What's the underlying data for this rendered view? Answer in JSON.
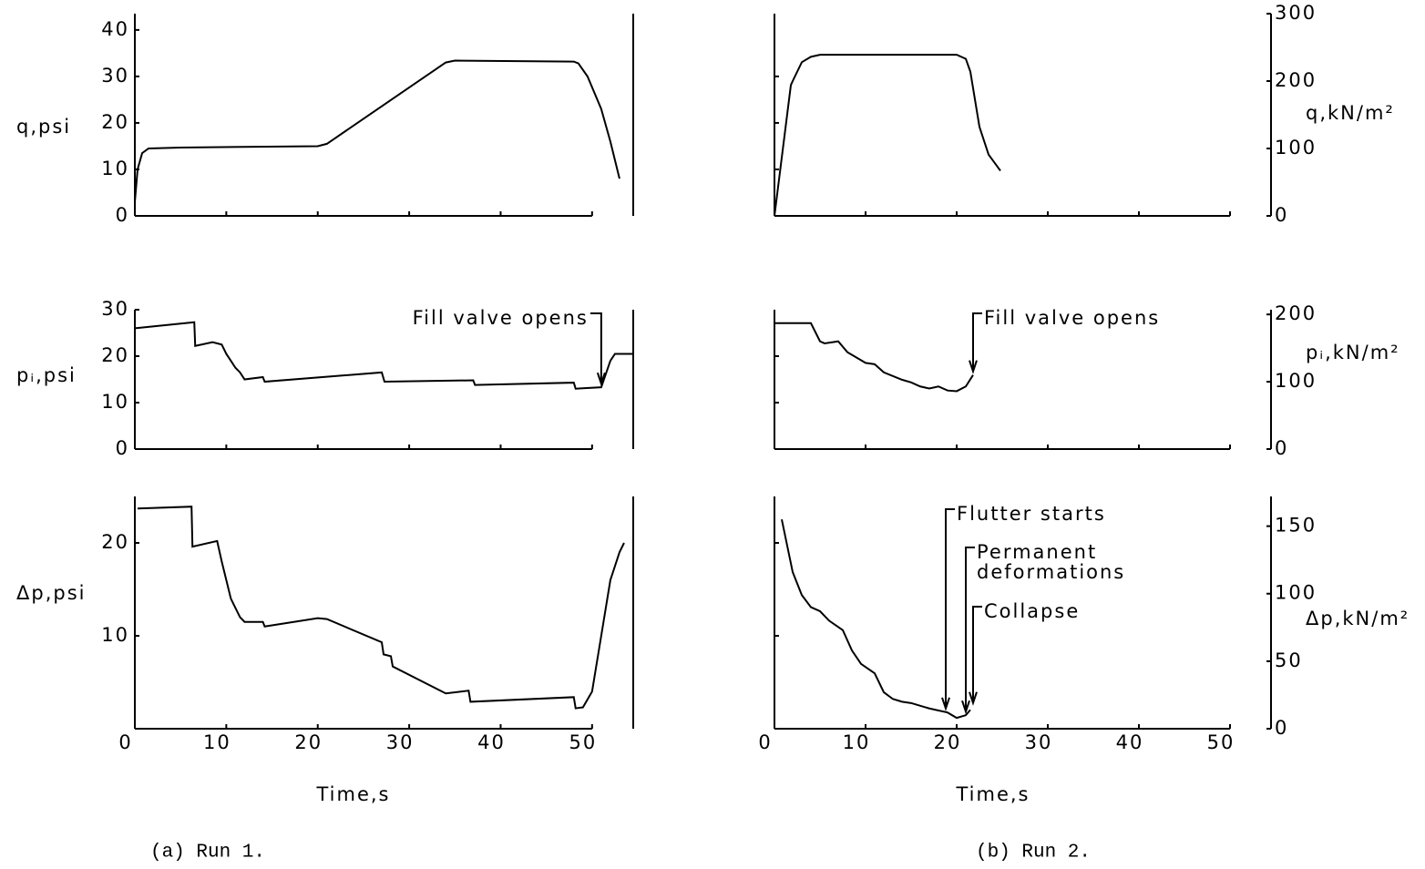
{
  "chart_data": [
    {
      "type": "line",
      "ylabel": "q,psi",
      "xlim": [
        0,
        54.5
      ],
      "xticks": [
        0,
        10,
        20,
        30,
        40,
        50
      ],
      "xtick_labels": false,
      "ylim": [
        0,
        43.5
      ],
      "yticks": [
        0,
        10,
        20,
        30,
        40
      ],
      "ytick_labels": true,
      "color": "#000000",
      "x": [
        0,
        0.3,
        0.8,
        1.5,
        5,
        20,
        21,
        34,
        35,
        48,
        48.5,
        49.5,
        51,
        52,
        53
      ],
      "values": [
        3,
        10,
        13.5,
        14.5,
        14.7,
        15,
        15.5,
        33,
        33.4,
        33.2,
        32.8,
        30,
        23,
        16,
        8
      ]
    },
    {
      "type": "line",
      "ylabel": "pᵢ,psi",
      "xlim": [
        0,
        54.5
      ],
      "xticks": [
        0,
        10,
        20,
        30,
        40,
        50
      ],
      "xtick_labels": false,
      "ylim": [
        0,
        30
      ],
      "yticks": [
        0,
        10,
        20,
        30
      ],
      "ytick_labels": true,
      "color": "#000000",
      "x": [
        0,
        6.5,
        6.6,
        8.5,
        9.5,
        10,
        10.5,
        11,
        11.5,
        12,
        14,
        14.2,
        27,
        27.3,
        37,
        37.2,
        48,
        48.2,
        51,
        52,
        52.5,
        54.5
      ],
      "values": [
        26,
        27.3,
        22.2,
        23,
        22.5,
        20.5,
        19,
        17.5,
        16.5,
        15,
        15.5,
        14.5,
        16.5,
        14.5,
        14.8,
        13.8,
        14.3,
        13,
        13.3,
        19,
        20.5,
        20.5
      ],
      "annotations": [
        {
          "text": "Fill valve opens",
          "x": 51,
          "side": "left"
        }
      ]
    },
    {
      "type": "line",
      "ylabel": "Δp,psi",
      "xlabel": "Time,s",
      "caption": "(a) Run 1.",
      "xlim": [
        0,
        54.5
      ],
      "xticks": [
        0,
        10,
        20,
        30,
        40,
        50
      ],
      "xtick_labels": true,
      "ylim": [
        0,
        25
      ],
      "yticks": [
        10,
        20
      ],
      "ytick_labels": true,
      "color": "#000000",
      "x": [
        0.3,
        6.2,
        6.3,
        9,
        9.5,
        10,
        10.5,
        11,
        11.5,
        12,
        14,
        14.2,
        20,
        21,
        27,
        27.2,
        28,
        28.2,
        34,
        36.5,
        36.7,
        48,
        48.2,
        49,
        50,
        51,
        52,
        53,
        53.5
      ],
      "values": [
        23.7,
        23.9,
        19.6,
        20.2,
        18,
        16,
        14,
        13,
        12,
        11.5,
        11.5,
        11,
        11.9,
        11.8,
        9.3,
        8,
        7.8,
        6.7,
        3.8,
        4.1,
        2.9,
        3.4,
        2.2,
        2.3,
        4,
        10,
        16,
        19,
        20
      ]
    },
    {
      "type": "line",
      "y2label": "q,kN/m²",
      "xlim": [
        0,
        54.5
      ],
      "xticks": [
        0,
        10,
        20,
        30,
        40,
        50
      ],
      "xtick_labels": false,
      "ylim": [
        0,
        43.5
      ],
      "yticks": [
        10,
        20,
        30
      ],
      "ytick_labels": false,
      "y2lim": [
        0,
        300
      ],
      "y2ticks": [
        0,
        100,
        200,
        300
      ],
      "axis": "y2",
      "color": "#000000",
      "x": [
        0,
        1.8,
        2,
        3,
        4,
        5,
        20,
        21,
        21.5,
        22.5,
        23.5,
        24.8
      ],
      "values": [
        0,
        194,
        200,
        228,
        236,
        239,
        239,
        233,
        214,
        132,
        91,
        67
      ]
    },
    {
      "type": "line",
      "y2label": "pᵢ,kN/m²",
      "xlim": [
        0,
        54.5
      ],
      "xticks": [
        0,
        10,
        20,
        30,
        40,
        50
      ],
      "xtick_labels": false,
      "ylim": [
        0,
        30
      ],
      "yticks": [
        10,
        20
      ],
      "ytick_labels": false,
      "y2lim": [
        0,
        207
      ],
      "y2ticks": [
        0,
        100,
        200
      ],
      "axis": "y2",
      "color": "#000000",
      "x": [
        0,
        4,
        5,
        5.5,
        7,
        8,
        10,
        11,
        12,
        14,
        15,
        16,
        17,
        18,
        19,
        20,
        21,
        21.8
      ],
      "values": [
        187,
        187,
        160,
        157,
        160,
        144,
        128,
        126,
        114,
        103,
        99,
        93,
        90,
        93,
        87,
        86,
        93,
        110
      ],
      "annotations": [
        {
          "text": "Fill valve opens",
          "x": 21.8,
          "side": "right"
        }
      ]
    },
    {
      "type": "line",
      "y2label": "Δp,kN/m²",
      "xlabel": "Time,s",
      "caption": "(b) Run 2.",
      "xlim": [
        0,
        54.5
      ],
      "xticks": [
        0,
        10,
        20,
        30,
        40,
        50
      ],
      "xtick_labels": true,
      "ylim": [
        0,
        25
      ],
      "yticks": [
        10,
        20
      ],
      "ytick_labels": false,
      "y2lim": [
        0,
        172
      ],
      "y2ticks": [
        0,
        50,
        100,
        150
      ],
      "axis": "y2",
      "color": "#000000",
      "x": [
        0.8,
        2,
        3,
        4,
        5,
        6,
        7.5,
        8.5,
        9.5,
        11,
        12,
        13,
        14,
        15,
        17,
        19,
        20,
        21,
        21.5
      ],
      "values": [
        155,
        116,
        99,
        90,
        87,
        80,
        73,
        58,
        48,
        41,
        27,
        22,
        20,
        19,
        15,
        12,
        8,
        10,
        14
      ],
      "annotations": [
        {
          "text": [
            "Flutter starts"
          ],
          "x": 18.8,
          "side": "right"
        },
        {
          "text": [
            "Permanent",
            "deformations"
          ],
          "x": 21,
          "side": "right"
        },
        {
          "text": [
            "Collapse"
          ],
          "x": 21.8,
          "side": "right"
        }
      ]
    }
  ]
}
